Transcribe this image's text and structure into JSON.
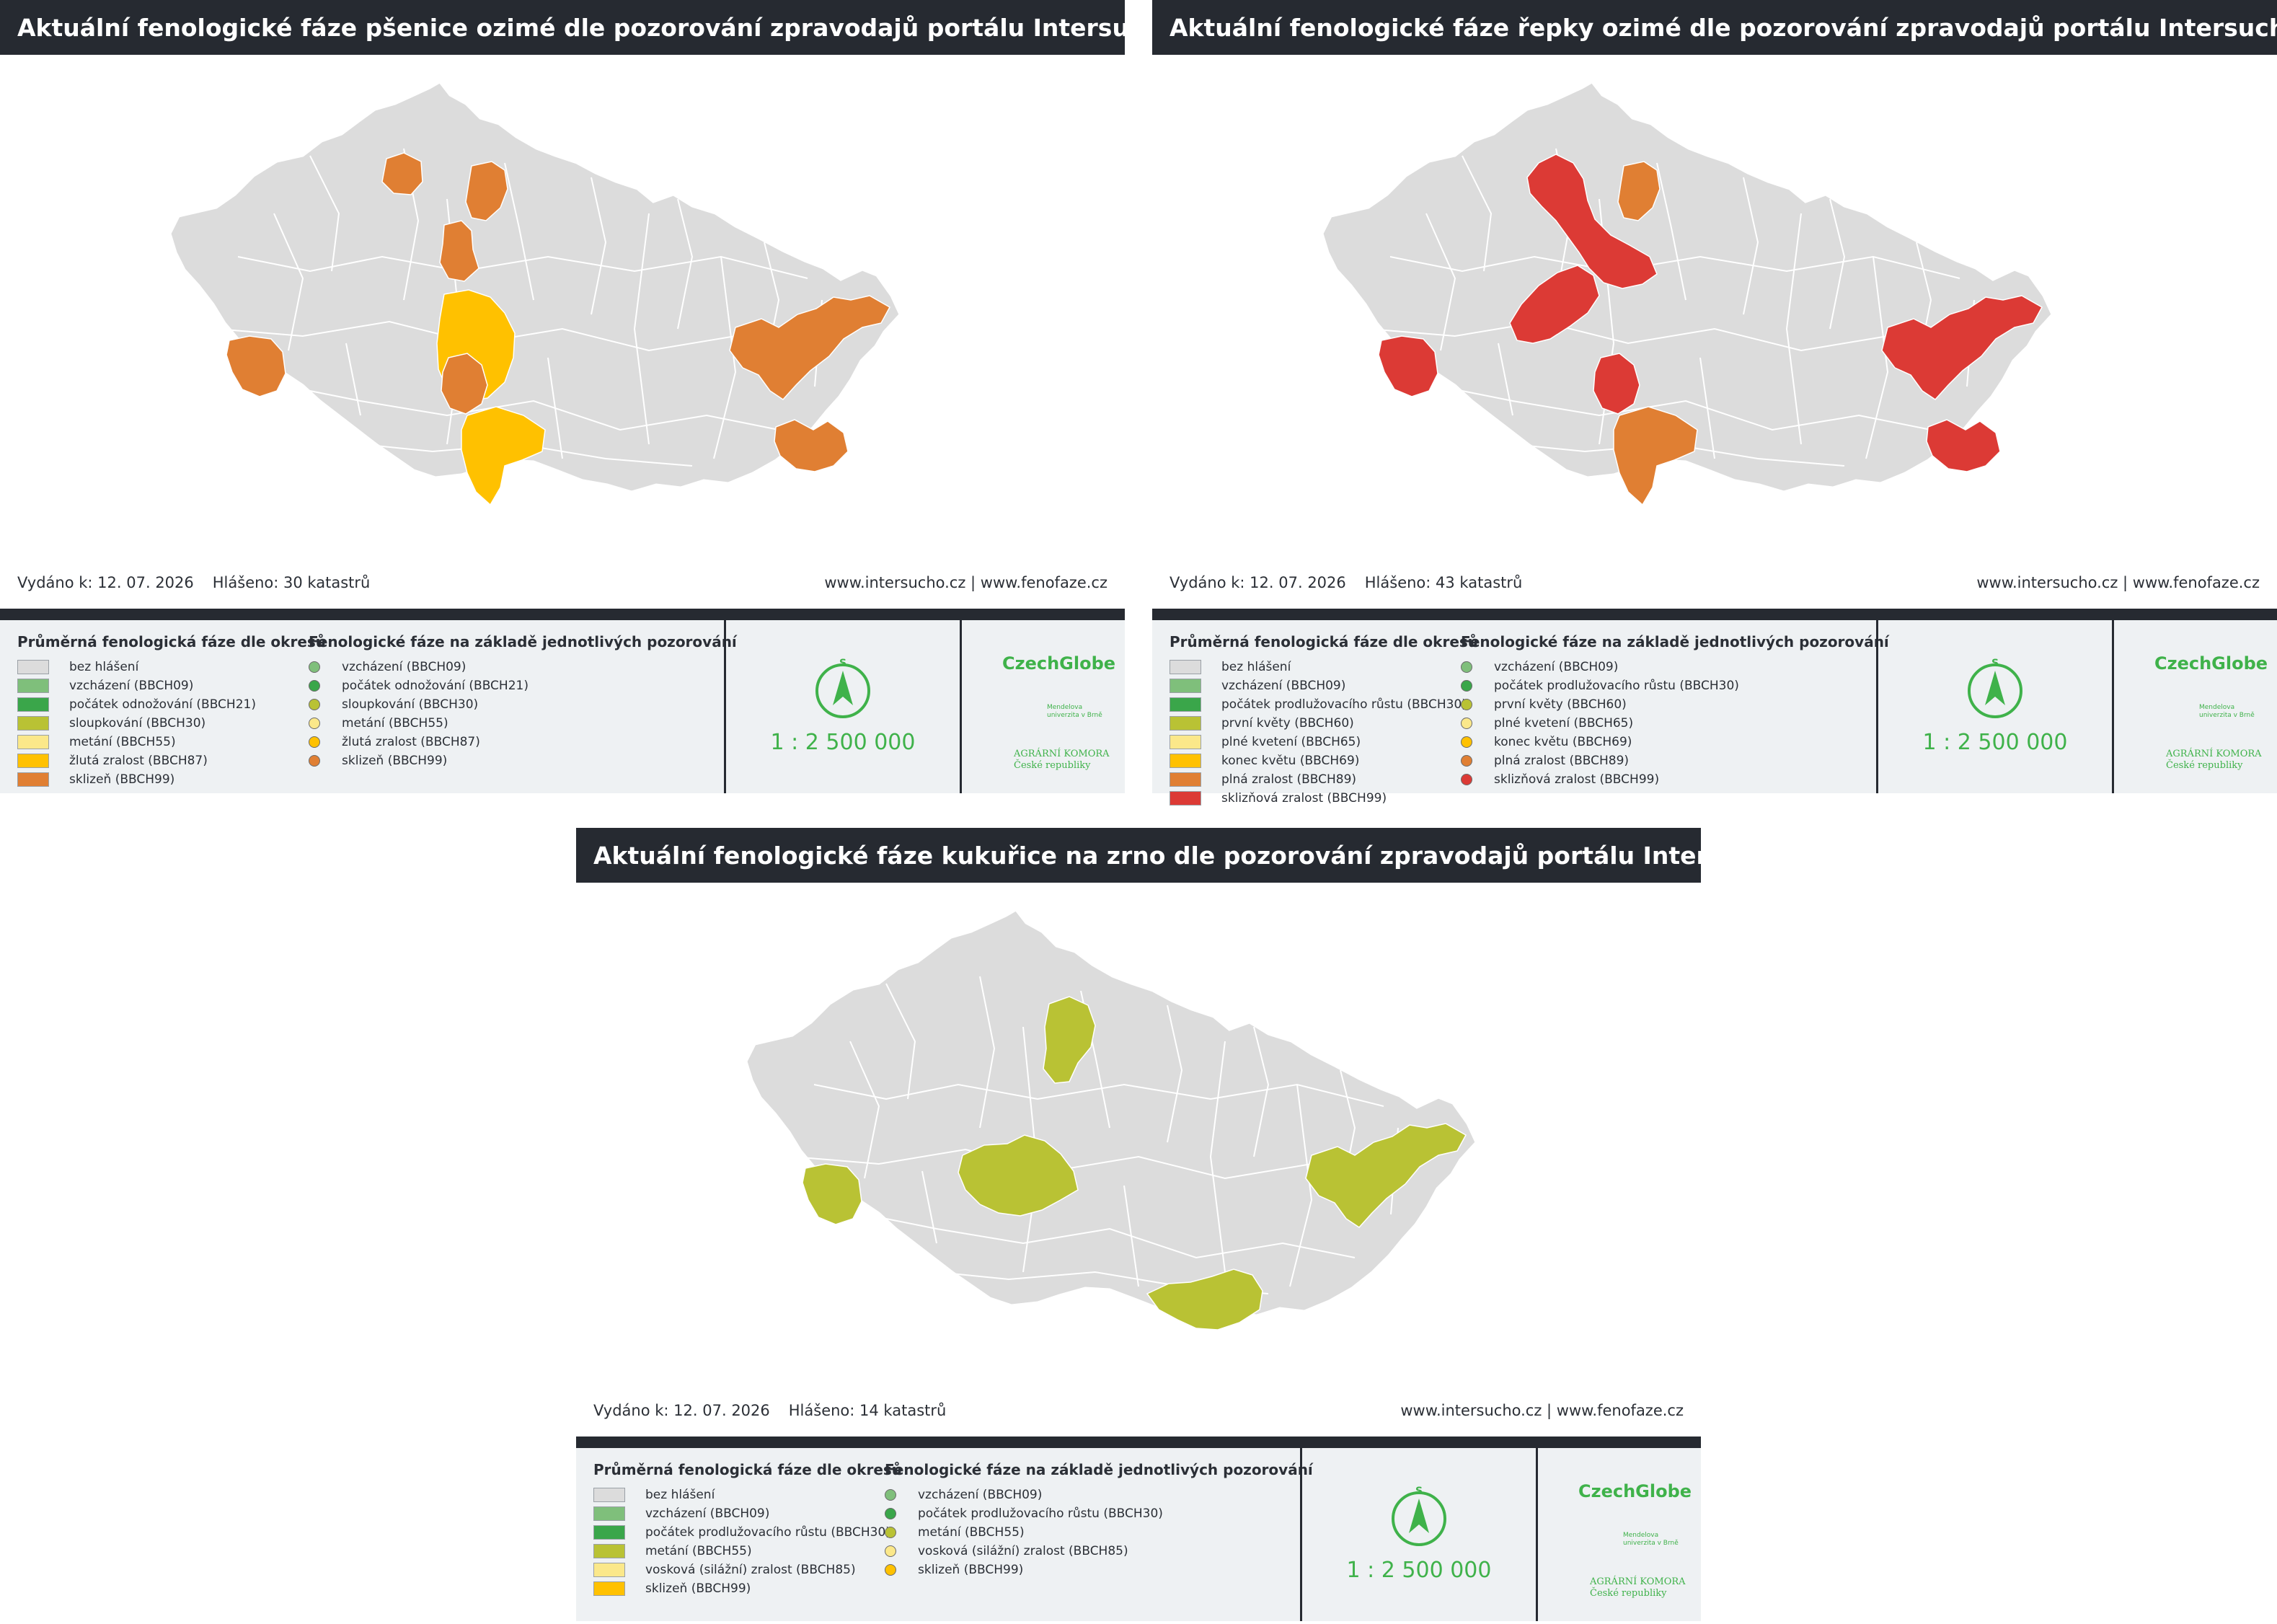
{
  "palette": {
    "none": "#dcdcdc",
    "bbch09": "#7fbf7b",
    "bbch21": "#3aa64a",
    "bbch30": "#b9c234",
    "bbch55": "#fbe88a",
    "bbch87": "#ffc100",
    "bbch99": "#e07f33",
    "bbch60": "#b9c234",
    "bbch65": "#fbe88a",
    "bbch69": "#ffc100",
    "bbch89": "#e07f33",
    "bbch99r": "#dc3a35",
    "maize55": "#b9c234",
    "maize85": "#fbe88a",
    "maize99": "#ffc100",
    "dark": "#262a31",
    "accent": "#3fb24a"
  },
  "panels": [
    {
      "title": "Aktuální fenologické fáze pšenice ozimé dle pozorování zpravodajů portálu Intersucho",
      "issued": "Vydáno k: 12. 07. 2026",
      "reported": "Hlášeno: 30 katastrů",
      "links": "www.intersucho.cz | www.fenofaze.cz",
      "legend_district_title": "Průměrná fenologická fáze dle okresů",
      "legend_obs_title": "Fenologické fáze na základě jednotlivých pozorování",
      "district_items": [
        {
          "label": "bez hlášení",
          "color": "#dcdcdc"
        },
        {
          "label": "vzcházení (BBCH09)",
          "color": "#7fbf7b"
        },
        {
          "label": "počátek odnožování (BBCH21)",
          "color": "#3aa64a"
        },
        {
          "label": "sloupkování (BBCH30)",
          "color": "#b9c234"
        },
        {
          "label": "metání (BBCH55)",
          "color": "#fbe88a"
        },
        {
          "label": "žlutá zralost (BBCH87)",
          "color": "#ffc100"
        },
        {
          "label": "sklizeň (BBCH99)",
          "color": "#e07f33"
        }
      ],
      "obs_items": [
        {
          "label": "vzcházení (BBCH09)",
          "color": "#7fbf7b"
        },
        {
          "label": "počátek odnožování (BBCH21)",
          "color": "#3aa64a"
        },
        {
          "label": "sloupkování (BBCH30)",
          "color": "#b9c234"
        },
        {
          "label": "metání (BBCH55)",
          "color": "#fbe88a"
        },
        {
          "label": "žlutá zralost (BBCH87)",
          "color": "#ffc100"
        },
        {
          "label": "sklizeň (BBCH99)",
          "color": "#e07f33"
        }
      ],
      "scale": "1 : 2 500 000",
      "north_label": "S",
      "logo_cg": "CzechGlobe",
      "logo_mu": "Mendelova univerzita v Brně",
      "logo_ak": "AGRÁRNÍ KOMORA České republiky",
      "regions": [
        {
          "name": "region-ustecko",
          "color": "#e07f33"
        },
        {
          "name": "region-liberecko",
          "color": "#e07f33"
        },
        {
          "name": "region-central-north",
          "color": "#e07f33"
        },
        {
          "name": "region-klatovy",
          "color": "#e07f33"
        },
        {
          "name": "region-benesov",
          "color": "#ffc100"
        },
        {
          "name": "region-tabor",
          "color": "#e07f33"
        },
        {
          "name": "region-budejovice",
          "color": "#ffc100"
        },
        {
          "name": "region-olomouc",
          "color": "#e07f33"
        },
        {
          "name": "region-hodonin",
          "color": "#e07f33"
        }
      ]
    },
    {
      "title": "Aktuální fenologické fáze řepky ozimé dle pozorování zpravodajů portálu Intersucho",
      "issued": "Vydáno k: 12. 07. 2026",
      "reported": "Hlášeno: 43 katastrů",
      "links": "www.intersucho.cz | www.fenofaze.cz",
      "legend_district_title": "Průměrná fenologická fáze dle okresů",
      "legend_obs_title": "Fenologické fáze na základě jednotlivých pozorování",
      "district_items": [
        {
          "label": "bez hlášení",
          "color": "#dcdcdc"
        },
        {
          "label": "vzcházení (BBCH09)",
          "color": "#7fbf7b"
        },
        {
          "label": "počátek prodlužovacího růstu (BBCH30)",
          "color": "#3aa64a"
        },
        {
          "label": "první květy (BBCH60)",
          "color": "#b9c234"
        },
        {
          "label": "plné kvetení (BBCH65)",
          "color": "#fbe88a"
        },
        {
          "label": "konec květu (BBCH69)",
          "color": "#ffc100"
        },
        {
          "label": "plná zralost (BBCH89)",
          "color": "#e07f33"
        },
        {
          "label": "sklizňová zralost (BBCH99)",
          "color": "#dc3a35"
        }
      ],
      "obs_items": [
        {
          "label": "vzcházení (BBCH09)",
          "color": "#7fbf7b"
        },
        {
          "label": "počátek prodlužovacího růstu (BBCH30)",
          "color": "#3aa64a"
        },
        {
          "label": "první květy (BBCH60)",
          "color": "#b9c234"
        },
        {
          "label": "plné kvetení (BBCH65)",
          "color": "#fbe88a"
        },
        {
          "label": "konec květu (BBCH69)",
          "color": "#ffc100"
        },
        {
          "label": "plná zralost (BBCH89)",
          "color": "#e07f33"
        },
        {
          "label": "sklizňová zralost (BBCH99)",
          "color": "#dc3a35"
        }
      ],
      "scale": "1 : 2 500 000",
      "north_label": "S",
      "logo_cg": "CzechGlobe",
      "logo_mu": "Mendelova univerzita v Brně",
      "logo_ak": "AGRÁRNÍ KOMORA České republiky",
      "regions": [
        {
          "name": "region-north-central",
          "color": "#dc3a35"
        },
        {
          "name": "region-liberecko",
          "color": "#e07f33"
        },
        {
          "name": "region-central-belt",
          "color": "#dc3a35"
        },
        {
          "name": "region-klatovy",
          "color": "#dc3a35"
        },
        {
          "name": "region-tabor",
          "color": "#dc3a35"
        },
        {
          "name": "region-budejovice",
          "color": "#e07f33"
        },
        {
          "name": "region-olomouc",
          "color": "#dc3a35"
        },
        {
          "name": "region-hodonin",
          "color": "#dc3a35"
        }
      ]
    },
    {
      "title": "Aktuální fenologické fáze kukuřice na zrno dle pozorování zpravodajů portálu Intersucho",
      "issued": "Vydáno k: 12. 07. 2026",
      "reported": "Hlášeno: 14 katastrů",
      "links": "www.intersucho.cz | www.fenofaze.cz",
      "legend_district_title": "Průměrná fenologická fáze dle okresů",
      "legend_obs_title": "Fenologické fáze na základě jednotlivých pozorování",
      "district_items": [
        {
          "label": "bez hlášení",
          "color": "#dcdcdc"
        },
        {
          "label": "vzcházení (BBCH09)",
          "color": "#7fbf7b"
        },
        {
          "label": "počátek prodlužovacího růstu (BBCH30)",
          "color": "#3aa64a"
        },
        {
          "label": "metání (BBCH55)",
          "color": "#b9c234"
        },
        {
          "label": "vosková (silážní) zralost (BBCH85)",
          "color": "#fbe88a"
        },
        {
          "label": "sklizeň (BBCH99)",
          "color": "#ffc100"
        }
      ],
      "obs_items": [
        {
          "label": "vzcházení (BBCH09)",
          "color": "#7fbf7b"
        },
        {
          "label": "počátek prodlužovacího růstu (BBCH30)",
          "color": "#3aa64a"
        },
        {
          "label": "metání (BBCH55)",
          "color": "#b9c234"
        },
        {
          "label": "vosková (silážní) zralost (BBCH85)",
          "color": "#fbe88a"
        },
        {
          "label": "sklizeň (BBCH99)",
          "color": "#ffc100"
        }
      ],
      "scale": "1 : 2 500 000",
      "north_label": "S",
      "logo_cg": "CzechGlobe",
      "logo_mu": "Mendelova univerzita v Brně",
      "logo_ak": "AGRÁRNÍ KOMORA České republiky",
      "regions": [
        {
          "name": "region-mlada-boleslav",
          "color": "#b9c234"
        },
        {
          "name": "region-klatovy",
          "color": "#b9c234"
        },
        {
          "name": "region-central",
          "color": "#b9c234"
        },
        {
          "name": "region-olomouc",
          "color": "#b9c234"
        },
        {
          "name": "region-znojmo",
          "color": "#b9c234"
        }
      ]
    }
  ]
}
